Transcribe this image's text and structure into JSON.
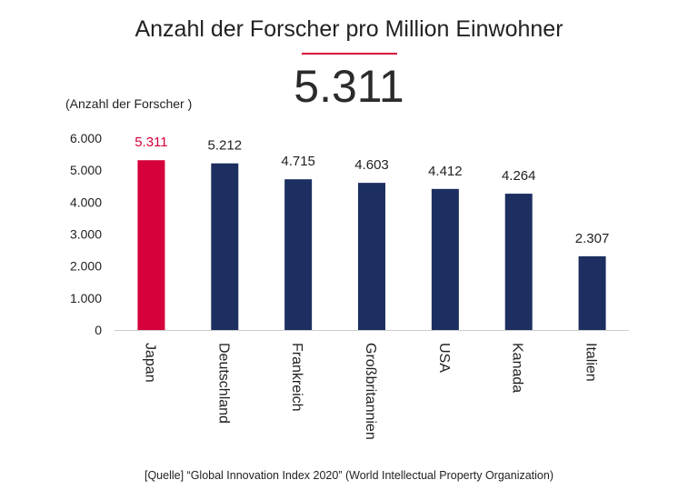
{
  "chart_data": {
    "type": "bar",
    "title": "Anzahl der Forscher pro Million Einwohner",
    "headline_value": "5.311",
    "ylabel": "(Anzahl der Forscher )",
    "xlabel": "",
    "ylim": [
      0,
      6000
    ],
    "y_ticks": [
      0,
      1000,
      2000,
      3000,
      4000,
      5000,
      6000
    ],
    "y_tick_labels": [
      "0",
      "1.000",
      "2.000",
      "3.000",
      "4.000",
      "5.000",
      "6.000"
    ],
    "categories": [
      "Japan",
      "Deutschland",
      "Frankreich",
      "Großbritannien",
      "USA",
      "Kanada",
      "Italien"
    ],
    "values": [
      5311,
      5212,
      4715,
      4603,
      4412,
      4264,
      2307
    ],
    "value_labels": [
      "5.311",
      "5.212",
      "4.715",
      "4.603",
      "4.412",
      "4.264",
      "2.307"
    ],
    "highlight_index": 0,
    "grid": false,
    "source": "[Quelle] “Global Innovation Index 2020” (World Intellectual Property Organization)"
  },
  "colors": {
    "highlight": "#d6003b",
    "bar": "#1c2f60",
    "axis": "#cccccc",
    "text": "#222222"
  }
}
